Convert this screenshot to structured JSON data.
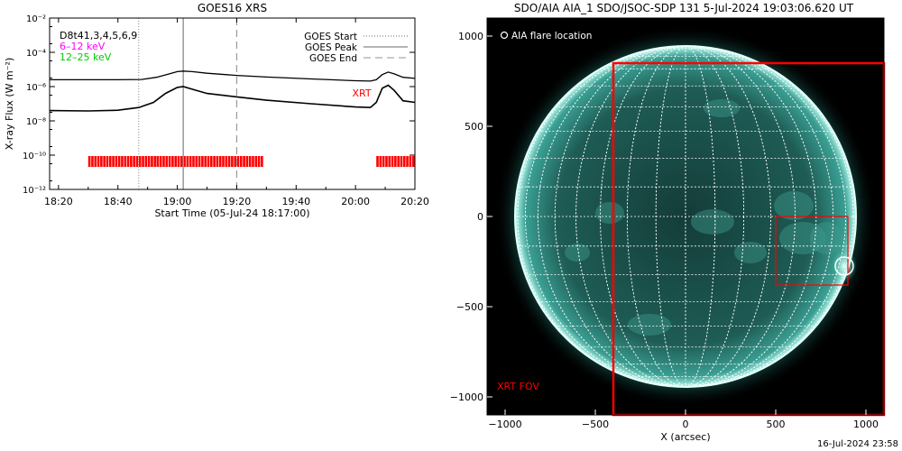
{
  "chart_data": [
    {
      "type": "line",
      "title": "GOES16 XRS",
      "xlabel": "Start Time (05-Jul-24 18:17:00)",
      "ylabel": "X-ray Flux (W m⁻²)",
      "y_scale": "log",
      "ylim": [
        1e-12,
        0.01
      ],
      "xlim": [
        "18:17",
        "20:20"
      ],
      "x_ticks": [
        "18:20",
        "18:40",
        "19:00",
        "19:20",
        "19:40",
        "20:00",
        "20:20"
      ],
      "y_ticks": [
        "10⁻¹²",
        "10⁻¹⁰",
        "10⁻⁸",
        "10⁻⁶",
        "10⁻⁴",
        "10⁻²"
      ],
      "y_tick_values": [
        1e-12,
        1e-10,
        1e-08,
        1e-06,
        0.0001,
        0.01
      ],
      "channel_labels": [
        {
          "text": "D8t41,3,4,5,6,9",
          "color": "#000000"
        },
        {
          "text": "6–12 keV",
          "color": "#ff00ff"
        },
        {
          "text": "12–25 keV",
          "color": "#00cc00"
        }
      ],
      "legend": [
        "GOES Start",
        "GOES Peak",
        "GOES End"
      ],
      "legend_placement": "top-right",
      "annotation": "XRT",
      "event_times": {
        "start": "18:47",
        "peak": "19:02",
        "end": "19:20"
      },
      "series": [
        {
          "name": "",
          "color": "#000000",
          "x": [
            "18:17",
            "18:30",
            "18:40",
            "18:48",
            "18:53",
            "18:58",
            "19:00",
            "19:02",
            "19:05",
            "19:10",
            "19:20",
            "19:30",
            "19:45",
            "20:00",
            "20:05",
            "20:07",
            "20:09",
            "20:11",
            "20:13",
            "20:16",
            "20:20"
          ],
          "y": [
            2.5e-06,
            2.5e-06,
            2.5e-06,
            2.6e-06,
            3.5e-06,
            6e-06,
            7.5e-06,
            8e-06,
            7.5e-06,
            6e-06,
            4.5e-06,
            3.6e-06,
            2.8e-06,
            2.2e-06,
            2.1e-06,
            2.5e-06,
            5e-06,
            7e-06,
            5.5e-06,
            3.5e-06,
            3e-06
          ]
        },
        {
          "name": "",
          "color": "#000000",
          "x": [
            "18:17",
            "18:30",
            "18:40",
            "18:47",
            "18:52",
            "18:56",
            "19:00",
            "19:02",
            "19:05",
            "19:10",
            "19:20",
            "19:30",
            "19:45",
            "20:00",
            "20:05",
            "20:07",
            "20:09",
            "20:11",
            "20:13",
            "20:16",
            "20:20"
          ],
          "y": [
            4e-08,
            3.8e-08,
            4.2e-08,
            6e-08,
            1.2e-07,
            4e-07,
            9e-07,
            1e-06,
            7e-07,
            4e-07,
            2.5e-07,
            1.6e-07,
            1e-07,
            6.5e-08,
            6e-08,
            1.2e-07,
            8e-07,
            1.2e-06,
            6e-07,
            1.5e-07,
            1.2e-07
          ]
        }
      ],
      "xrt_coverage": [
        {
          "start": "18:30",
          "end": "18:53"
        },
        {
          "start": "18:53",
          "end": "19:29"
        },
        {
          "start": "20:07",
          "end": "20:20"
        }
      ]
    },
    {
      "type": "image",
      "title": "SDO/AIA AIA_1 SDO/JSOC-SDP 131  5-Jul-2024 19:03:06.620 UT",
      "xlabel": "X (arcsec)",
      "ylabel": "",
      "xlim": [
        -1100,
        1100
      ],
      "ylim": [
        -1100,
        1100
      ],
      "x_ticks": [
        "−1000",
        "−500",
        "0",
        "500",
        "1000"
      ],
      "x_tick_values": [
        -1000,
        -500,
        0,
        500,
        1000
      ],
      "y_ticks": [
        "1000",
        "500",
        "0",
        "−500",
        "−1000"
      ],
      "y_tick_values": [
        1000,
        500,
        0,
        -500,
        -1000
      ],
      "legend": "AIA flare location",
      "fov_label": "XRT FOV",
      "solar_radius_arcsec": 945,
      "grid_step_deg": 10,
      "xrt_fov_box": {
        "x": [
          -400,
          1100
        ],
        "y": [
          -1100,
          850
        ]
      },
      "zoom_box": {
        "x": [
          500,
          900
        ],
        "y": [
          0,
          -380
        ]
      },
      "flare_location": {
        "x": 880,
        "y": -275,
        "radius": 50
      },
      "colors": {
        "background": "#000000",
        "disk": "#1e5c55",
        "limb": "#e8fffb",
        "grid": "#ffffff",
        "fov": "#ff0000"
      }
    }
  ],
  "timestamp": "16-Jul-2024 23:58"
}
